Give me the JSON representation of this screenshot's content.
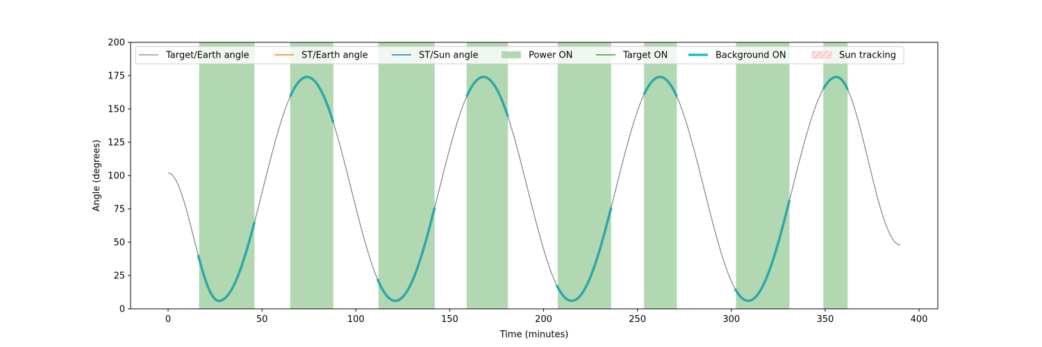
{
  "chart_data": {
    "type": "line",
    "title": "",
    "xlabel": "Time (minutes)",
    "ylabel": "Angle (degrees)",
    "xlim": [
      -20,
      410
    ],
    "ylim": [
      0,
      200
    ],
    "xticks": [
      0,
      50,
      100,
      150,
      200,
      250,
      300,
      350,
      400
    ],
    "yticks": [
      0,
      25,
      50,
      75,
      100,
      125,
      150,
      175,
      200
    ],
    "legend": {
      "placement": "top",
      "entries": [
        {
          "label": "Target/Earth angle",
          "kind": "line",
          "color": "#808080"
        },
        {
          "label": "ST/Earth angle",
          "kind": "line",
          "color": "#ff7f0e"
        },
        {
          "label": "ST/Sun angle",
          "kind": "line",
          "color": "#1f77b4"
        },
        {
          "label": "Power ON",
          "kind": "patch",
          "color": "#b2d8b2"
        },
        {
          "label": "Target ON",
          "kind": "line",
          "color": "#2ca02c"
        },
        {
          "label": "Background ON",
          "kind": "thickline",
          "color": "#17becf"
        },
        {
          "label": "Sun tracking",
          "kind": "hatch",
          "color": "#f4b6b6"
        }
      ]
    },
    "series": [
      {
        "name": "Target/Earth angle",
        "color": "#808080",
        "points": [
          [
            0,
            102
          ],
          [
            27,
            6
          ],
          [
            74,
            174
          ],
          [
            121,
            6
          ],
          [
            168,
            174
          ],
          [
            215,
            6
          ],
          [
            262,
            174
          ],
          [
            309,
            6
          ],
          [
            356,
            174
          ],
          [
            390,
            48
          ]
        ]
      }
    ],
    "power_on_spans": [
      [
        16.5,
        46
      ],
      [
        65,
        88
      ],
      [
        112,
        142
      ],
      [
        159,
        181
      ],
      [
        207.5,
        236
      ],
      [
        253.5,
        271
      ],
      [
        302.5,
        331
      ],
      [
        349,
        362
      ]
    ],
    "background_on_color": "#2aa8a8",
    "background_on_spans": [
      [
        16,
        46
      ],
      [
        65,
        88
      ],
      [
        111.5,
        142
      ],
      [
        159,
        181
      ],
      [
        207,
        236
      ],
      [
        253.5,
        271
      ],
      [
        302,
        331
      ],
      [
        349,
        362
      ]
    ]
  }
}
